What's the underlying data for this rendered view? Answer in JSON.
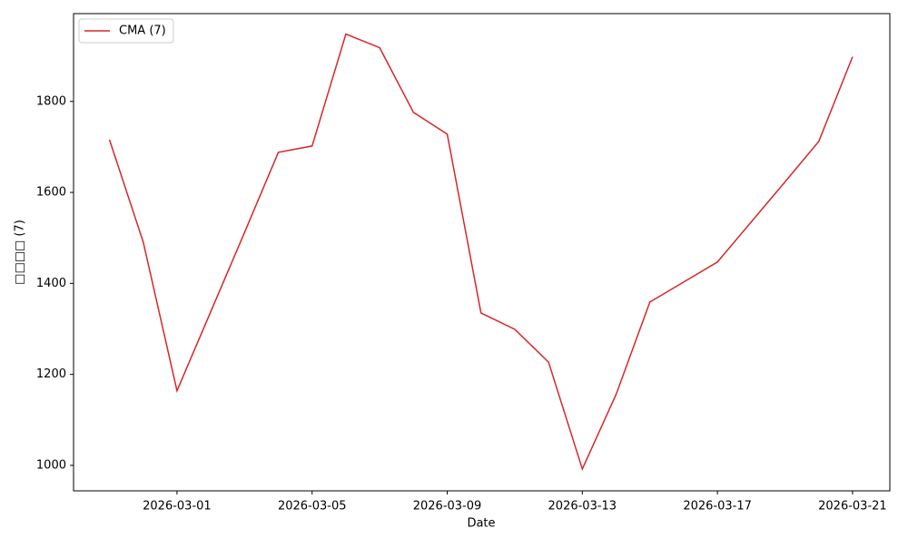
{
  "chart_data": {
    "type": "line",
    "x_label": "Date",
    "y_label": "□□□□ (7)",
    "x": [
      "2026-02-27",
      "2026-02-28",
      "2026-03-01",
      "2026-03-02",
      "2026-03-03",
      "2026-03-04",
      "2026-03-05",
      "2026-03-06",
      "2026-03-07",
      "2026-03-08",
      "2026-03-09",
      "2026-03-10",
      "2026-03-11",
      "2026-03-12",
      "2026-03-13",
      "2026-03-14",
      "2026-03-15",
      "2026-03-16",
      "2026-03-17",
      "2026-03-18",
      "2026-03-19",
      "2026-03-20",
      "2026-03-21"
    ],
    "series": [
      {
        "name": "CMA (7)",
        "color": "#d62728",
        "values": [
          1716,
          1491,
          1164,
          1338,
          1512,
          1688,
          1702,
          1948,
          1918,
          1776,
          1728,
          1335,
          1299,
          1227,
          992,
          1156,
          1359,
          1403,
          1447,
          1535,
          1623,
          1712,
          1898
        ]
      }
    ],
    "xlim": [
      "2026-02-25T22:30",
      "2026-03-22T02:30"
    ],
    "xticks": [
      "2026-03-01",
      "2026-03-05",
      "2026-03-09",
      "2026-03-13",
      "2026-03-17",
      "2026-03-21"
    ],
    "ylim": [
      944,
      1993
    ],
    "yticks": [
      1000,
      1200,
      1400,
      1600,
      1800
    ],
    "legend": "upper-left",
    "grid": false
  }
}
